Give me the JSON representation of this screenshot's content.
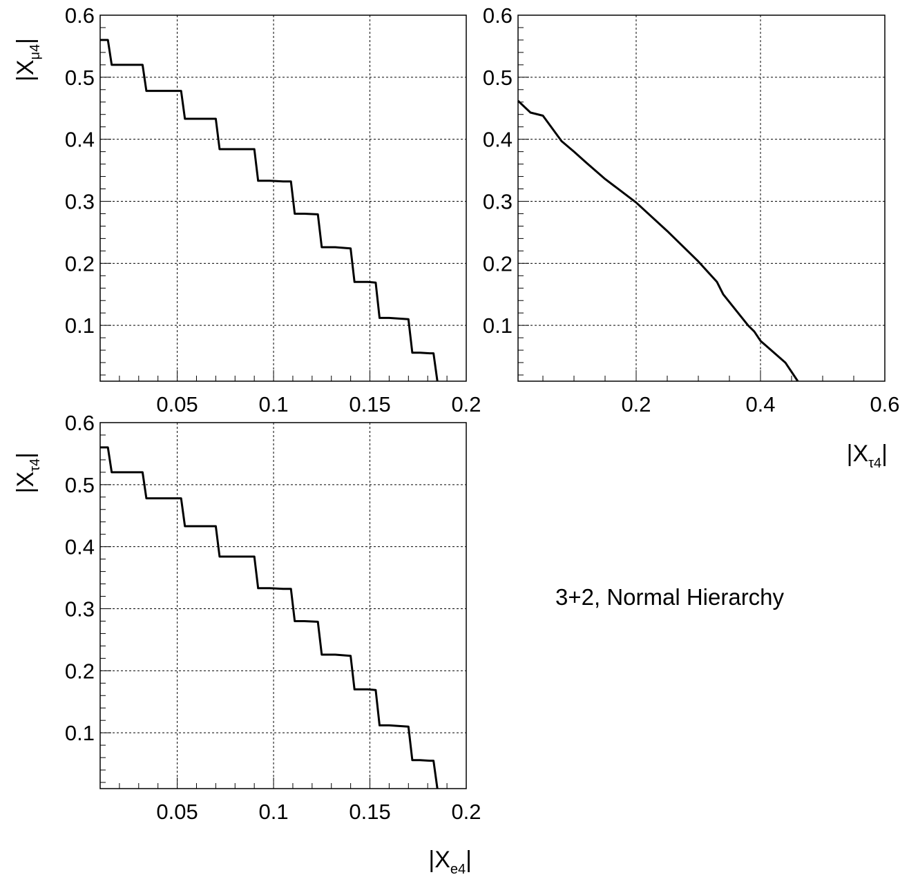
{
  "chart_data": [
    {
      "panel": "top-left",
      "type": "line",
      "xlim": [
        0.01,
        0.2
      ],
      "ylim": [
        0.01,
        0.6
      ],
      "xticks": [
        0.05,
        0.1,
        0.15,
        0.2
      ],
      "xtick_labels": [
        "0.05",
        "0.1",
        "0.15",
        "0.2"
      ],
      "yticks": [
        0.1,
        0.2,
        0.3,
        0.4,
        0.5,
        0.6
      ],
      "ytick_labels": [
        "0.1",
        "0.2",
        "0.3",
        "0.4",
        "0.5",
        "0.6"
      ],
      "ylabel": {
        "main": "|X",
        "sub": "μ4",
        "end": "|"
      },
      "xlabel": null,
      "grid": true,
      "series": [
        {
          "x": [
            0.01,
            0.014,
            0.016,
            0.032,
            0.034,
            0.052,
            0.054,
            0.07,
            0.072,
            0.085,
            0.09,
            0.092,
            0.098,
            0.105,
            0.109,
            0.111,
            0.116,
            0.123,
            0.125,
            0.132,
            0.14,
            0.142,
            0.149,
            0.153,
            0.155,
            0.16,
            0.17,
            0.172,
            0.176,
            0.181,
            0.183,
            0.185
          ],
          "y": [
            0.56,
            0.56,
            0.52,
            0.52,
            0.478,
            0.478,
            0.433,
            0.433,
            0.384,
            0.384,
            0.384,
            0.333,
            0.333,
            0.332,
            0.332,
            0.28,
            0.28,
            0.279,
            0.226,
            0.226,
            0.224,
            0.17,
            0.17,
            0.169,
            0.112,
            0.112,
            0.11,
            0.056,
            0.056,
            0.055,
            0.055,
            0.01
          ]
        }
      ]
    },
    {
      "panel": "top-right",
      "type": "line",
      "xlim": [
        0.01,
        0.6
      ],
      "ylim": [
        0.01,
        0.6
      ],
      "xticks": [
        0.2,
        0.4,
        0.6
      ],
      "xtick_labels": [
        "0.2",
        "0.4",
        "0.6"
      ],
      "yticks": [
        0.1,
        0.2,
        0.3,
        0.4,
        0.5,
        0.6
      ],
      "ytick_labels": [
        "0.1",
        "0.2",
        "0.3",
        "0.4",
        "0.5",
        "0.6"
      ],
      "xlabel": {
        "main": "|X",
        "sub": "τ4",
        "end": "|"
      },
      "ylabel": null,
      "grid": true,
      "series": [
        {
          "x": [
            0.01,
            0.03,
            0.05,
            0.08,
            0.1,
            0.12,
            0.15,
            0.2,
            0.25,
            0.3,
            0.33,
            0.34,
            0.38,
            0.39,
            0.4,
            0.44,
            0.45,
            0.46
          ],
          "y": [
            0.462,
            0.443,
            0.438,
            0.397,
            0.38,
            0.362,
            0.336,
            0.298,
            0.252,
            0.203,
            0.17,
            0.15,
            0.1,
            0.09,
            0.075,
            0.04,
            0.025,
            0.01
          ]
        }
      ]
    },
    {
      "panel": "bottom-left",
      "type": "line",
      "xlim": [
        0.01,
        0.2
      ],
      "ylim": [
        0.01,
        0.6
      ],
      "xticks": [
        0.05,
        0.1,
        0.15,
        0.2
      ],
      "xtick_labels": [
        "0.05",
        "0.1",
        "0.15",
        "0.2"
      ],
      "yticks": [
        0.1,
        0.2,
        0.3,
        0.4,
        0.5,
        0.6
      ],
      "ytick_labels": [
        "0.1",
        "0.2",
        "0.3",
        "0.4",
        "0.5",
        "0.6"
      ],
      "ylabel": {
        "main": "|X",
        "sub": "τ4",
        "end": "|"
      },
      "xlabel": {
        "main": "|X",
        "sub": "e4",
        "end": "|"
      },
      "grid": true,
      "series": [
        {
          "x": [
            0.01,
            0.014,
            0.016,
            0.032,
            0.034,
            0.052,
            0.054,
            0.07,
            0.072,
            0.085,
            0.09,
            0.092,
            0.098,
            0.105,
            0.109,
            0.111,
            0.116,
            0.123,
            0.125,
            0.132,
            0.14,
            0.142,
            0.149,
            0.153,
            0.155,
            0.16,
            0.17,
            0.172,
            0.176,
            0.181,
            0.183,
            0.185
          ],
          "y": [
            0.56,
            0.56,
            0.52,
            0.52,
            0.478,
            0.478,
            0.433,
            0.433,
            0.384,
            0.384,
            0.384,
            0.333,
            0.333,
            0.332,
            0.332,
            0.28,
            0.28,
            0.279,
            0.226,
            0.226,
            0.224,
            0.17,
            0.17,
            0.169,
            0.112,
            0.112,
            0.11,
            0.056,
            0.056,
            0.055,
            0.055,
            0.01
          ]
        }
      ]
    }
  ],
  "annotation": "3+2, Normal Hierarchy",
  "colors": {
    "line": "#000000",
    "grid": "#000000",
    "background": "#ffffff"
  }
}
